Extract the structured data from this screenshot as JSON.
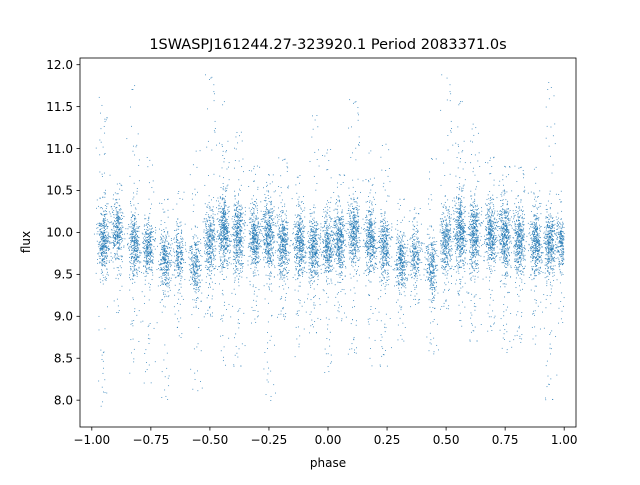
{
  "chart_data": {
    "type": "scatter",
    "title": "1SWASPJ161244.27-323920.1 Period 2083371.0s",
    "xlabel": "phase",
    "ylabel": "flux",
    "xlim": [
      -1.05,
      1.05
    ],
    "ylim": [
      7.68,
      12.08
    ],
    "x_ticks": [
      -1.0,
      -0.75,
      -0.5,
      -0.25,
      0.0,
      0.25,
      0.5,
      0.75,
      1.0
    ],
    "x_tick_labels": [
      "−1.00",
      "−0.75",
      "−0.50",
      "−0.25",
      "0.00",
      "0.25",
      "0.50",
      "0.75",
      "1.00"
    ],
    "y_ticks": [
      8.0,
      8.5,
      9.0,
      9.5,
      10.0,
      10.5,
      11.0,
      11.5,
      12.0
    ],
    "y_tick_labels": [
      "8.0",
      "8.5",
      "9.0",
      "9.5",
      "10.0",
      "10.5",
      "11.0",
      "11.5",
      "12.0"
    ],
    "grid": false,
    "marker_color": "#1f77b4",
    "series": [
      {
        "description_of_distribution": "phase-folded light curve plotted twice over phase -1 to 1; dense columns of points at night phases, median flux near 9.9",
        "clusters": [
          {
            "phase": -0.95,
            "center": 9.9,
            "spread": 0.35,
            "min": 7.9,
            "max": 11.7,
            "weight": 1.0
          },
          {
            "phase": -0.89,
            "center": 10.0,
            "spread": 0.3,
            "min": 9.0,
            "max": 10.6,
            "weight": 0.8
          },
          {
            "phase": -0.82,
            "center": 9.85,
            "spread": 0.35,
            "min": 8.3,
            "max": 11.8,
            "weight": 0.9
          },
          {
            "phase": -0.76,
            "center": 9.8,
            "spread": 0.3,
            "min": 8.2,
            "max": 10.9,
            "weight": 0.8
          },
          {
            "phase": -0.69,
            "center": 9.65,
            "spread": 0.35,
            "min": 8.0,
            "max": 10.4,
            "weight": 0.8
          },
          {
            "phase": -0.63,
            "center": 9.7,
            "spread": 0.3,
            "min": 8.7,
            "max": 10.5,
            "weight": 0.6
          },
          {
            "phase": -0.56,
            "center": 9.6,
            "spread": 0.35,
            "min": 8.0,
            "max": 11.0,
            "weight": 0.7
          },
          {
            "phase": -0.5,
            "center": 9.9,
            "spread": 0.35,
            "min": 8.9,
            "max": 11.9,
            "weight": 0.9
          },
          {
            "phase": -0.44,
            "center": 10.0,
            "spread": 0.4,
            "min": 8.3,
            "max": 11.6,
            "weight": 1.2
          },
          {
            "phase": -0.38,
            "center": 9.95,
            "spread": 0.4,
            "min": 8.4,
            "max": 11.2,
            "weight": 1.1
          },
          {
            "phase": -0.31,
            "center": 9.9,
            "spread": 0.35,
            "min": 8.9,
            "max": 10.8,
            "weight": 1.0
          },
          {
            "phase": -0.25,
            "center": 9.95,
            "spread": 0.4,
            "min": 7.9,
            "max": 10.7,
            "weight": 1.1
          },
          {
            "phase": -0.19,
            "center": 9.85,
            "spread": 0.35,
            "min": 8.9,
            "max": 10.9,
            "weight": 1.0
          },
          {
            "phase": -0.12,
            "center": 9.85,
            "spread": 0.35,
            "min": 8.5,
            "max": 10.7,
            "weight": 1.0
          },
          {
            "phase": -0.06,
            "center": 9.8,
            "spread": 0.35,
            "min": 8.8,
            "max": 11.4,
            "weight": 1.0
          },
          {
            "phase": 0.0,
            "center": 9.8,
            "spread": 0.35,
            "min": 8.3,
            "max": 11.0,
            "weight": 0.9
          },
          {
            "phase": 0.05,
            "center": 9.9,
            "spread": 0.35,
            "min": 8.9,
            "max": 10.7,
            "weight": 1.0
          },
          {
            "phase": 0.11,
            "center": 10.0,
            "spread": 0.35,
            "min": 8.4,
            "max": 11.6,
            "weight": 1.0
          },
          {
            "phase": 0.18,
            "center": 9.9,
            "spread": 0.35,
            "min": 8.3,
            "max": 11.0,
            "weight": 1.0
          },
          {
            "phase": 0.24,
            "center": 9.8,
            "spread": 0.35,
            "min": 8.4,
            "max": 11.1,
            "weight": 0.9
          },
          {
            "phase": 0.31,
            "center": 9.65,
            "spread": 0.35,
            "min": 8.7,
            "max": 10.4,
            "weight": 0.8
          },
          {
            "phase": 0.37,
            "center": 9.7,
            "spread": 0.3,
            "min": 9.1,
            "max": 10.3,
            "weight": 0.6
          },
          {
            "phase": 0.44,
            "center": 9.6,
            "spread": 0.35,
            "min": 8.5,
            "max": 10.9,
            "weight": 0.7
          },
          {
            "phase": 0.5,
            "center": 9.9,
            "spread": 0.35,
            "min": 9.0,
            "max": 11.9,
            "weight": 0.9
          },
          {
            "phase": 0.56,
            "center": 10.0,
            "spread": 0.4,
            "min": 8.8,
            "max": 11.6,
            "weight": 1.2
          },
          {
            "phase": 0.62,
            "center": 9.95,
            "spread": 0.4,
            "min": 8.7,
            "max": 11.3,
            "weight": 1.1
          },
          {
            "phase": 0.69,
            "center": 9.95,
            "spread": 0.35,
            "min": 8.8,
            "max": 10.9,
            "weight": 1.0
          },
          {
            "phase": 0.75,
            "center": 9.95,
            "spread": 0.4,
            "min": 8.5,
            "max": 10.8,
            "weight": 1.1
          },
          {
            "phase": 0.81,
            "center": 9.9,
            "spread": 0.35,
            "min": 8.6,
            "max": 10.8,
            "weight": 1.0
          },
          {
            "phase": 0.88,
            "center": 9.85,
            "spread": 0.35,
            "min": 8.5,
            "max": 10.8,
            "weight": 1.0
          },
          {
            "phase": 0.94,
            "center": 9.85,
            "spread": 0.35,
            "min": 8.0,
            "max": 11.8,
            "weight": 1.0
          },
          {
            "phase": 0.99,
            "center": 9.85,
            "spread": 0.3,
            "min": 8.9,
            "max": 10.5,
            "weight": 0.7
          }
        ]
      }
    ]
  }
}
